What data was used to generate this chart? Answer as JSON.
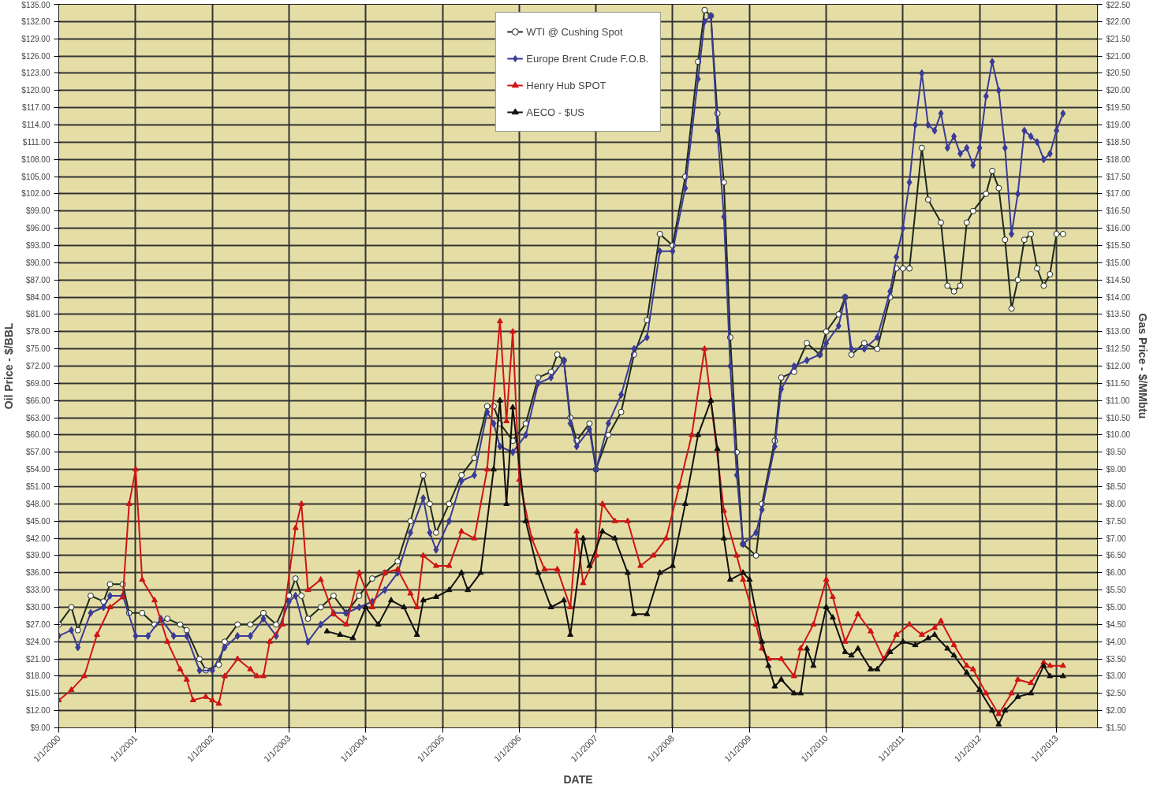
{
  "chart_data": {
    "type": "line",
    "xlabel": "DATE",
    "ylabel": "Oil Price - $/BBL",
    "y2label": "Gas Price - $/MMbtu",
    "grid": true,
    "legend": "top",
    "line_style": "solid",
    "xlim": [
      "2000-01-01",
      "2013-07-15"
    ],
    "xticks": [
      {
        "value": "2000-01-01",
        "label": "1/1/2000"
      },
      {
        "value": "2001-01-01",
        "label": "1/1/2001"
      },
      {
        "value": "2002-01-01",
        "label": "1/1/2002"
      },
      {
        "value": "2003-01-01",
        "label": "1/1/2003"
      },
      {
        "value": "2004-01-01",
        "label": "1/1/2004"
      },
      {
        "value": "2005-01-01",
        "label": "1/1/2005"
      },
      {
        "value": "2006-01-01",
        "label": "1/1/2006"
      },
      {
        "value": "2007-01-01",
        "label": "1/1/2007"
      },
      {
        "value": "2008-01-01",
        "label": "1/1/2008"
      },
      {
        "value": "2009-01-01",
        "label": "1/1/2009"
      },
      {
        "value": "2010-01-01",
        "label": "1/1/2010"
      },
      {
        "value": "2011-01-01",
        "label": "1/1/2011"
      },
      {
        "value": "2012-01-01",
        "label": "1/1/2012"
      },
      {
        "value": "2013-01-01",
        "label": "1/1/2013"
      }
    ],
    "ylim": [
      9,
      135
    ],
    "yticks": [
      {
        "value": 9,
        "label": "$9.00"
      },
      {
        "value": 12,
        "label": "$12.00"
      },
      {
        "value": 15,
        "label": "$15.00"
      },
      {
        "value": 18,
        "label": "$18.00"
      },
      {
        "value": 21,
        "label": "$21.00"
      },
      {
        "value": 24,
        "label": "$24.00"
      },
      {
        "value": 27,
        "label": "$27.00"
      },
      {
        "value": 30,
        "label": "$30.00"
      },
      {
        "value": 33,
        "label": "$33.00"
      },
      {
        "value": 36,
        "label": "$36.00"
      },
      {
        "value": 39,
        "label": "$39.00"
      },
      {
        "value": 42,
        "label": "$42.00"
      },
      {
        "value": 45,
        "label": "$45.00"
      },
      {
        "value": 48,
        "label": "$48.00"
      },
      {
        "value": 51,
        "label": "$51.00"
      },
      {
        "value": 54,
        "label": "$54.00"
      },
      {
        "value": 57,
        "label": "$57.00"
      },
      {
        "value": 60,
        "label": "$60.00"
      },
      {
        "value": 63,
        "label": "$63.00"
      },
      {
        "value": 66,
        "label": "$66.00"
      },
      {
        "value": 69,
        "label": "$69.00"
      },
      {
        "value": 72,
        "label": "$72.00"
      },
      {
        "value": 75,
        "label": "$75.00"
      },
      {
        "value": 78,
        "label": "$78.00"
      },
      {
        "value": 81,
        "label": "$81.00"
      },
      {
        "value": 84,
        "label": "$84.00"
      },
      {
        "value": 87,
        "label": "$87.00"
      },
      {
        "value": 90,
        "label": "$90.00"
      },
      {
        "value": 93,
        "label": "$93.00"
      },
      {
        "value": 96,
        "label": "$96.00"
      },
      {
        "value": 99,
        "label": "$99.00"
      },
      {
        "value": 102,
        "label": "$102.00"
      },
      {
        "value": 105,
        "label": "$105.00"
      },
      {
        "value": 108,
        "label": "$108.00"
      },
      {
        "value": 111,
        "label": "$111.00"
      },
      {
        "value": 114,
        "label": "$114.00"
      },
      {
        "value": 117,
        "label": "$117.00"
      },
      {
        "value": 120,
        "label": "$120.00"
      },
      {
        "value": 123,
        "label": "$123.00"
      },
      {
        "value": 126,
        "label": "$126.00"
      },
      {
        "value": 129,
        "label": "$129.00"
      },
      {
        "value": 132,
        "label": "$132.00"
      },
      {
        "value": 135,
        "label": "$135.00"
      }
    ],
    "y2lim": [
      1.5,
      22.5
    ],
    "y2ticks": [
      {
        "value": 1.5,
        "label": "$1.50"
      },
      {
        "value": 2,
        "label": "$2.00"
      },
      {
        "value": 2.5,
        "label": "$2.50"
      },
      {
        "value": 3,
        "label": "$3.00"
      },
      {
        "value": 3.5,
        "label": "$3.50"
      },
      {
        "value": 4,
        "label": "$4.00"
      },
      {
        "value": 4.5,
        "label": "$4.50"
      },
      {
        "value": 5,
        "label": "$5.00"
      },
      {
        "value": 5.5,
        "label": "$5.50"
      },
      {
        "value": 6,
        "label": "$6.00"
      },
      {
        "value": 6.5,
        "label": "$6.50"
      },
      {
        "value": 7,
        "label": "$7.00"
      },
      {
        "value": 7.5,
        "label": "$7.50"
      },
      {
        "value": 8,
        "label": "$8.00"
      },
      {
        "value": 8.5,
        "label": "$8.50"
      },
      {
        "value": 9,
        "label": "$9.00"
      },
      {
        "value": 9.5,
        "label": "$9.50"
      },
      {
        "value": 10,
        "label": "$10.00"
      },
      {
        "value": 10.5,
        "label": "$10.50"
      },
      {
        "value": 11,
        "label": "$11.00"
      },
      {
        "value": 11.5,
        "label": "$11.50"
      },
      {
        "value": 12,
        "label": "$12.00"
      },
      {
        "value": 12.5,
        "label": "$12.50"
      },
      {
        "value": 13,
        "label": "$13.00"
      },
      {
        "value": 13.5,
        "label": "$13.50"
      },
      {
        "value": 14,
        "label": "$14.00"
      },
      {
        "value": 14.5,
        "label": "$14.50"
      },
      {
        "value": 15,
        "label": "$15.00"
      },
      {
        "value": 15.5,
        "label": "$15.50"
      },
      {
        "value": 16,
        "label": "$16.00"
      },
      {
        "value": 16.5,
        "label": "$16.50"
      },
      {
        "value": 17,
        "label": "$17.00"
      },
      {
        "value": 17.5,
        "label": "$17.50"
      },
      {
        "value": 18,
        "label": "$18.00"
      },
      {
        "value": 18.5,
        "label": "$18.50"
      },
      {
        "value": 19,
        "label": "$19.00"
      },
      {
        "value": 19.5,
        "label": "$19.50"
      },
      {
        "value": 20,
        "label": "$20.00"
      },
      {
        "value": 20.5,
        "label": "$20.50"
      },
      {
        "value": 21,
        "label": "$21.00"
      },
      {
        "value": 21.5,
        "label": "$21.50"
      },
      {
        "value": 22,
        "label": "$22.00"
      },
      {
        "value": 22.5,
        "label": "$22.50"
      }
    ],
    "series": [
      {
        "name": "WTI @ Cushing Spot",
        "color": "#1e2a1e",
        "marker": "circle",
        "x": [
          "2000-01",
          "2000-03",
          "2000-04",
          "2000-06",
          "2000-08",
          "2000-09",
          "2000-11",
          "2000-12",
          "2001-02",
          "2001-04",
          "2001-06",
          "2001-08",
          "2001-09",
          "2001-11",
          "2001-12",
          "2002-02",
          "2002-03",
          "2002-05",
          "2002-07",
          "2002-09",
          "2002-11",
          "2003-01",
          "2003-02",
          "2003-03",
          "2003-04",
          "2003-06",
          "2003-08",
          "2003-10",
          "2003-12",
          "2004-02",
          "2004-04",
          "2004-06",
          "2004-08",
          "2004-10",
          "2004-11",
          "2004-12",
          "2005-02",
          "2005-04",
          "2005-06",
          "2005-08",
          "2005-09",
          "2005-10",
          "2005-12",
          "2006-02",
          "2006-04",
          "2006-06",
          "2006-07",
          "2006-08",
          "2006-09",
          "2006-10",
          "2006-12",
          "2007-01",
          "2007-03",
          "2007-05",
          "2007-07",
          "2007-09",
          "2007-11",
          "2008-01",
          "2008-03",
          "2008-05",
          "2008-06",
          "2008-07",
          "2008-08",
          "2008-09",
          "2008-10",
          "2008-11",
          "2008-12",
          "2009-02",
          "2009-03",
          "2009-05",
          "2009-06",
          "2009-08",
          "2009-10",
          "2009-12",
          "2010-01",
          "2010-03",
          "2010-04",
          "2010-05",
          "2010-07",
          "2010-09",
          "2010-11",
          "2010-12",
          "2011-01",
          "2011-02",
          "2011-04",
          "2011-05",
          "2011-07",
          "2011-08",
          "2011-09",
          "2011-10",
          "2011-11",
          "2011-12",
          "2012-02",
          "2012-03",
          "2012-04",
          "2012-05",
          "2012-06",
          "2012-07",
          "2012-08",
          "2012-09",
          "2012-10",
          "2012-11",
          "2012-12",
          "2013-01",
          "2013-02"
        ],
        "values": [
          27,
          30,
          26,
          32,
          31,
          34,
          34,
          29,
          29,
          27,
          28,
          27,
          26,
          21,
          19,
          20,
          24,
          27,
          27,
          29,
          27,
          32,
          35,
          32,
          28,
          30,
          32,
          29,
          32,
          35,
          36,
          38,
          45,
          53,
          48,
          43,
          48,
          53,
          56,
          65,
          65,
          62,
          59,
          62,
          70,
          71,
          74,
          73,
          63,
          59,
          62,
          54,
          60,
          64,
          74,
          80,
          95,
          93,
          105,
          125,
          134,
          133,
          116,
          104,
          77,
          57,
          41,
          39,
          48,
          59,
          70,
          71,
          76,
          74,
          78,
          81,
          84,
          74,
          76,
          75,
          84,
          89,
          89,
          89,
          110,
          101,
          97,
          86,
          85,
          86,
          97,
          99,
          102,
          106,
          103,
          94,
          82,
          87,
          94,
          95,
          89,
          86,
          88,
          95,
          95
        ]
      },
      {
        "name": "Europe Brent Crude F.O.B.",
        "color": "#3a3a98",
        "marker": "diamond",
        "x": [
          "2000-01",
          "2000-03",
          "2000-04",
          "2000-06",
          "2000-08",
          "2000-09",
          "2000-11",
          "2001-01",
          "2001-03",
          "2001-05",
          "2001-07",
          "2001-09",
          "2001-11",
          "2002-01",
          "2002-03",
          "2002-05",
          "2002-07",
          "2002-09",
          "2002-11",
          "2003-01",
          "2003-02",
          "2003-04",
          "2003-06",
          "2003-08",
          "2003-10",
          "2003-12",
          "2004-02",
          "2004-04",
          "2004-06",
          "2004-08",
          "2004-10",
          "2004-11",
          "2004-12",
          "2005-02",
          "2005-04",
          "2005-06",
          "2005-08",
          "2005-09",
          "2005-10",
          "2005-12",
          "2006-02",
          "2006-04",
          "2006-06",
          "2006-08",
          "2006-09",
          "2006-10",
          "2006-12",
          "2007-01",
          "2007-03",
          "2007-05",
          "2007-07",
          "2007-09",
          "2007-11",
          "2008-01",
          "2008-03",
          "2008-05",
          "2008-06",
          "2008-07",
          "2008-08",
          "2008-09",
          "2008-10",
          "2008-11",
          "2008-12",
          "2009-02",
          "2009-03",
          "2009-05",
          "2009-06",
          "2009-08",
          "2009-10",
          "2009-12",
          "2010-01",
          "2010-03",
          "2010-04",
          "2010-05",
          "2010-07",
          "2010-09",
          "2010-11",
          "2010-12",
          "2011-01",
          "2011-02",
          "2011-03",
          "2011-04",
          "2011-05",
          "2011-06",
          "2011-07",
          "2011-08",
          "2011-09",
          "2011-10",
          "2011-11",
          "2011-12",
          "2012-01",
          "2012-02",
          "2012-03",
          "2012-04",
          "2012-05",
          "2012-06",
          "2012-07",
          "2012-08",
          "2012-09",
          "2012-10",
          "2012-11",
          "2012-12",
          "2013-01",
          "2013-02"
        ],
        "values": [
          25,
          26,
          23,
          29,
          30,
          32,
          32,
          25,
          25,
          28,
          25,
          25,
          19,
          19,
          23,
          25,
          25,
          28,
          25,
          31,
          32,
          24,
          27,
          29,
          29,
          30,
          31,
          33,
          36,
          43,
          49,
          43,
          40,
          45,
          52,
          53,
          64,
          62,
          58,
          57,
          60,
          69,
          70,
          73,
          62,
          58,
          61,
          54,
          62,
          67,
          75,
          77,
          92,
          92,
          103,
          122,
          132,
          133,
          113,
          98,
          72,
          53,
          41,
          43,
          47,
          58,
          68,
          72,
          73,
          74,
          76,
          79,
          84,
          75,
          75,
          77,
          85,
          91,
          96,
          104,
          114,
          123,
          114,
          113,
          116,
          110,
          112,
          109,
          110,
          107,
          110,
          119,
          125,
          120,
          110,
          95,
          102,
          113,
          112,
          111,
          108,
          109,
          113,
          116
        ]
      },
      {
        "name": "Henry Hub SPOT",
        "color": "#d01414",
        "marker": "triangle",
        "axis": "y2",
        "x": [
          "2000-01",
          "2000-03",
          "2000-05",
          "2000-07",
          "2000-09",
          "2000-11",
          "2000-12",
          "2001-01",
          "2001-02",
          "2001-04",
          "2001-06",
          "2001-08",
          "2001-09",
          "2001-10",
          "2001-12",
          "2002-01",
          "2002-02",
          "2002-03",
          "2002-05",
          "2002-07",
          "2002-08",
          "2002-09",
          "2002-10",
          "2002-12",
          "2003-02",
          "2003-03",
          "2003-04",
          "2003-06",
          "2003-08",
          "2003-10",
          "2003-12",
          "2004-02",
          "2004-04",
          "2004-06",
          "2004-08",
          "2004-09",
          "2004-10",
          "2004-12",
          "2005-02",
          "2005-04",
          "2005-06",
          "2005-08",
          "2005-10",
          "2005-11",
          "2005-12",
          "2006-01",
          "2006-03",
          "2006-05",
          "2006-07",
          "2006-09",
          "2006-10",
          "2006-11",
          "2007-01",
          "2007-02",
          "2007-04",
          "2007-06",
          "2007-08",
          "2007-10",
          "2007-12",
          "2008-02",
          "2008-04",
          "2008-06",
          "2008-07",
          "2008-09",
          "2008-11",
          "2008-12",
          "2009-02",
          "2009-03",
          "2009-04",
          "2009-06",
          "2009-08",
          "2009-09",
          "2009-11",
          "2010-01",
          "2010-02",
          "2010-04",
          "2010-06",
          "2010-08",
          "2010-10",
          "2010-12",
          "2011-02",
          "2011-04",
          "2011-06",
          "2011-07",
          "2011-09",
          "2011-11",
          "2011-12",
          "2012-02",
          "2012-04",
          "2012-06",
          "2012-07",
          "2012-09",
          "2012-11",
          "2012-12",
          "2013-02"
        ],
        "values": [
          2.3,
          2.6,
          3.0,
          4.2,
          5.0,
          5.3,
          8.0,
          9.0,
          5.8,
          5.2,
          4.0,
          3.2,
          2.9,
          2.3,
          2.4,
          2.3,
          2.2,
          3.0,
          3.5,
          3.2,
          3.0,
          3.0,
          4.0,
          4.5,
          7.3,
          8.0,
          5.5,
          5.8,
          4.8,
          4.5,
          6.0,
          5.0,
          6.0,
          6.1,
          5.4,
          5.0,
          6.5,
          6.2,
          6.2,
          7.2,
          7.0,
          9.0,
          13.3,
          10.4,
          13.0,
          8.7,
          7.0,
          6.1,
          6.1,
          5.0,
          7.2,
          5.7,
          6.5,
          8.0,
          7.5,
          7.5,
          6.2,
          6.5,
          7.0,
          8.5,
          10.0,
          12.5,
          11.0,
          7.8,
          6.5,
          5.8,
          4.5,
          3.8,
          3.5,
          3.5,
          3.0,
          3.8,
          4.5,
          5.8,
          5.3,
          4.0,
          4.8,
          4.3,
          3.5,
          4.2,
          4.5,
          4.2,
          4.4,
          4.6,
          3.9,
          3.3,
          3.2,
          2.5,
          1.9,
          2.5,
          2.9,
          2.8,
          3.4,
          3.3,
          3.3
        ]
      },
      {
        "name": "AECO - $US",
        "color": "#101010",
        "marker": "triangle",
        "axis": "y2",
        "x": [
          "2003-07",
          "2003-09",
          "2003-11",
          "2004-01",
          "2004-03",
          "2004-05",
          "2004-07",
          "2004-09",
          "2004-10",
          "2004-12",
          "2005-02",
          "2005-04",
          "2005-05",
          "2005-07",
          "2005-09",
          "2005-10",
          "2005-11",
          "2005-12",
          "2006-02",
          "2006-04",
          "2006-06",
          "2006-08",
          "2006-09",
          "2006-11",
          "2006-12",
          "2007-02",
          "2007-04",
          "2007-06",
          "2007-07",
          "2007-09",
          "2007-11",
          "2008-01",
          "2008-03",
          "2008-05",
          "2008-07",
          "2008-08",
          "2008-09",
          "2008-10",
          "2008-12",
          "2009-01",
          "2009-03",
          "2009-04",
          "2009-05",
          "2009-06",
          "2009-08",
          "2009-09",
          "2009-10",
          "2009-11",
          "2010-01",
          "2010-02",
          "2010-04",
          "2010-05",
          "2010-06",
          "2010-08",
          "2010-09",
          "2010-11",
          "2011-01",
          "2011-03",
          "2011-05",
          "2011-06",
          "2011-08",
          "2011-09",
          "2011-11",
          "2012-01",
          "2012-03",
          "2012-04",
          "2012-05",
          "2012-07",
          "2012-09",
          "2012-11",
          "2012-12",
          "2013-02"
        ],
        "values": [
          4.3,
          4.2,
          4.1,
          5.0,
          4.5,
          5.2,
          5.0,
          4.2,
          5.2,
          5.3,
          5.5,
          6.0,
          5.5,
          6.0,
          9.0,
          11.0,
          8.0,
          10.8,
          7.5,
          6.0,
          5.0,
          5.2,
          4.2,
          7.0,
          6.2,
          7.2,
          7.0,
          6.0,
          4.8,
          4.8,
          6.0,
          6.2,
          8.0,
          10.0,
          11.0,
          9.6,
          7.0,
          5.8,
          6.0,
          5.8,
          4.0,
          3.3,
          2.7,
          2.9,
          2.5,
          2.5,
          3.8,
          3.3,
          5.0,
          4.7,
          3.7,
          3.6,
          3.8,
          3.2,
          3.2,
          3.7,
          4.0,
          3.9,
          4.1,
          4.2,
          3.8,
          3.6,
          3.1,
          2.6,
          2.0,
          1.6,
          2.0,
          2.4,
          2.5,
          3.3,
          3.0,
          3.0
        ]
      }
    ]
  }
}
